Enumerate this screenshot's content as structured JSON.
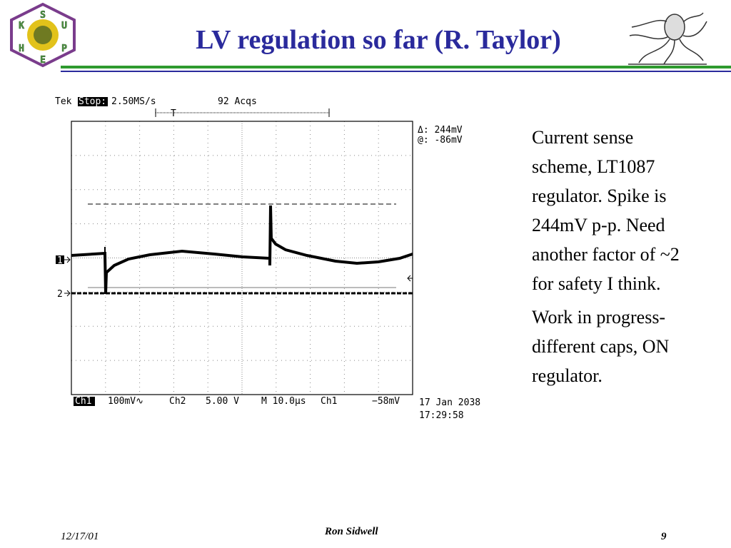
{
  "header": {
    "title": "LV regulation so far (R. Taylor)",
    "logo_letters": [
      "S",
      "U",
      "P",
      "E",
      "H",
      "K"
    ]
  },
  "scope": {
    "brand": "Tek",
    "state": "Stop:",
    "rate": "2.50MS/s",
    "acqs": "92 Acqs",
    "trigger_marker": "T",
    "delta": "Δ: 244mV",
    "at": "@: -86mV",
    "ch1_marker": "1",
    "ch2_marker": "2",
    "ch1": "Ch1",
    "ch1_scale": "100mV∿",
    "ch2": "Ch2",
    "ch2_scale": "5.00 V",
    "timebase": "M 10.0µs",
    "trigger_source": "Ch1",
    "trigger_level": "−58mV",
    "date": "17 Jan 2038",
    "time": "17:29:58"
  },
  "body": {
    "paragraphs": [
      "Current sense scheme, LT1087 regulator. Spike is 244mV p-p. Need another factor of ~2 for safety I think.",
      "Work in progress- different caps, ON regulator."
    ]
  },
  "footer": {
    "date": "12/17/01",
    "author": "Ron Sidwell",
    "page": "9"
  }
}
